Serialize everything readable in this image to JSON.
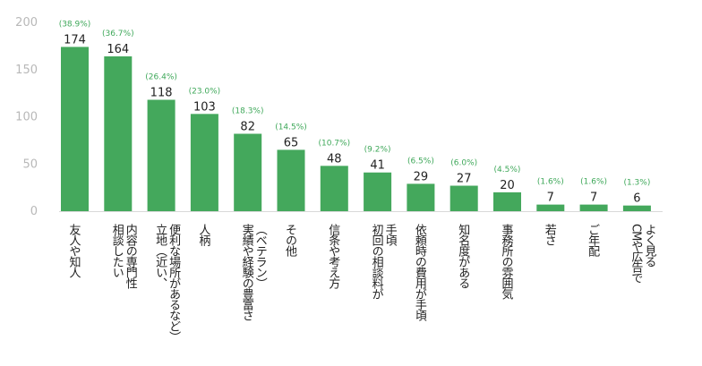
{
  "colors": {
    "bar": "#44a85c",
    "percent_text": "#3fa85a",
    "axis_line": "#d9d9d9",
    "tick_text": "#b8b8b8",
    "value_text": "#222222"
  },
  "chart_data": {
    "type": "bar",
    "title": "",
    "xlabel": "",
    "ylabel": "",
    "ylim": [
      0,
      200
    ],
    "yticks": [
      0,
      50,
      100,
      150,
      200
    ],
    "grid": false,
    "categories": [
      "友人や知人",
      "相談したい内容の専門性",
      "立地（近い、便利な場所があるなど）",
      "人柄",
      "実績や経験の豊富さ（ベテラン）",
      "その他",
      "信条や考え方",
      "初回の相談料が手頃",
      "依頼時の費用が手頃",
      "知名度がある",
      "事務所の雰囲気",
      "若さ",
      "ご年配",
      "CMや広告でよく見る"
    ],
    "category_lines": [
      [
        "友人や知人"
      ],
      [
        "相談したい",
        "内容の専門性"
      ],
      [
        "立地（近い、",
        "便利な場所があるなど）"
      ],
      [
        "人柄"
      ],
      [
        "実績や経験の豊富さ",
        "（ベテラン）"
      ],
      [
        "その他"
      ],
      [
        "信条や考え方"
      ],
      [
        "初回の相談料が",
        "手頃"
      ],
      [
        "依頼時の費用が手頃"
      ],
      [
        "知名度がある"
      ],
      [
        "事務所の雰囲気"
      ],
      [
        "若さ"
      ],
      [
        "ご年配"
      ],
      [
        "CMや広告で",
        "よく見る"
      ]
    ],
    "values": [
      174,
      164,
      118,
      103,
      82,
      65,
      48,
      41,
      29,
      27,
      20,
      7,
      7,
      6
    ],
    "percent_labels": [
      "(38.9%)",
      "(36.7%)",
      "(26.4%)",
      "(23.0%)",
      "(18.3%)",
      "(14.5%)",
      "(10.7%)",
      "(9.2%)",
      "(6.5%)",
      "(6.0%)",
      "(4.5%)",
      "(1.6%)",
      "(1.6%)",
      "(1.3%)"
    ]
  }
}
